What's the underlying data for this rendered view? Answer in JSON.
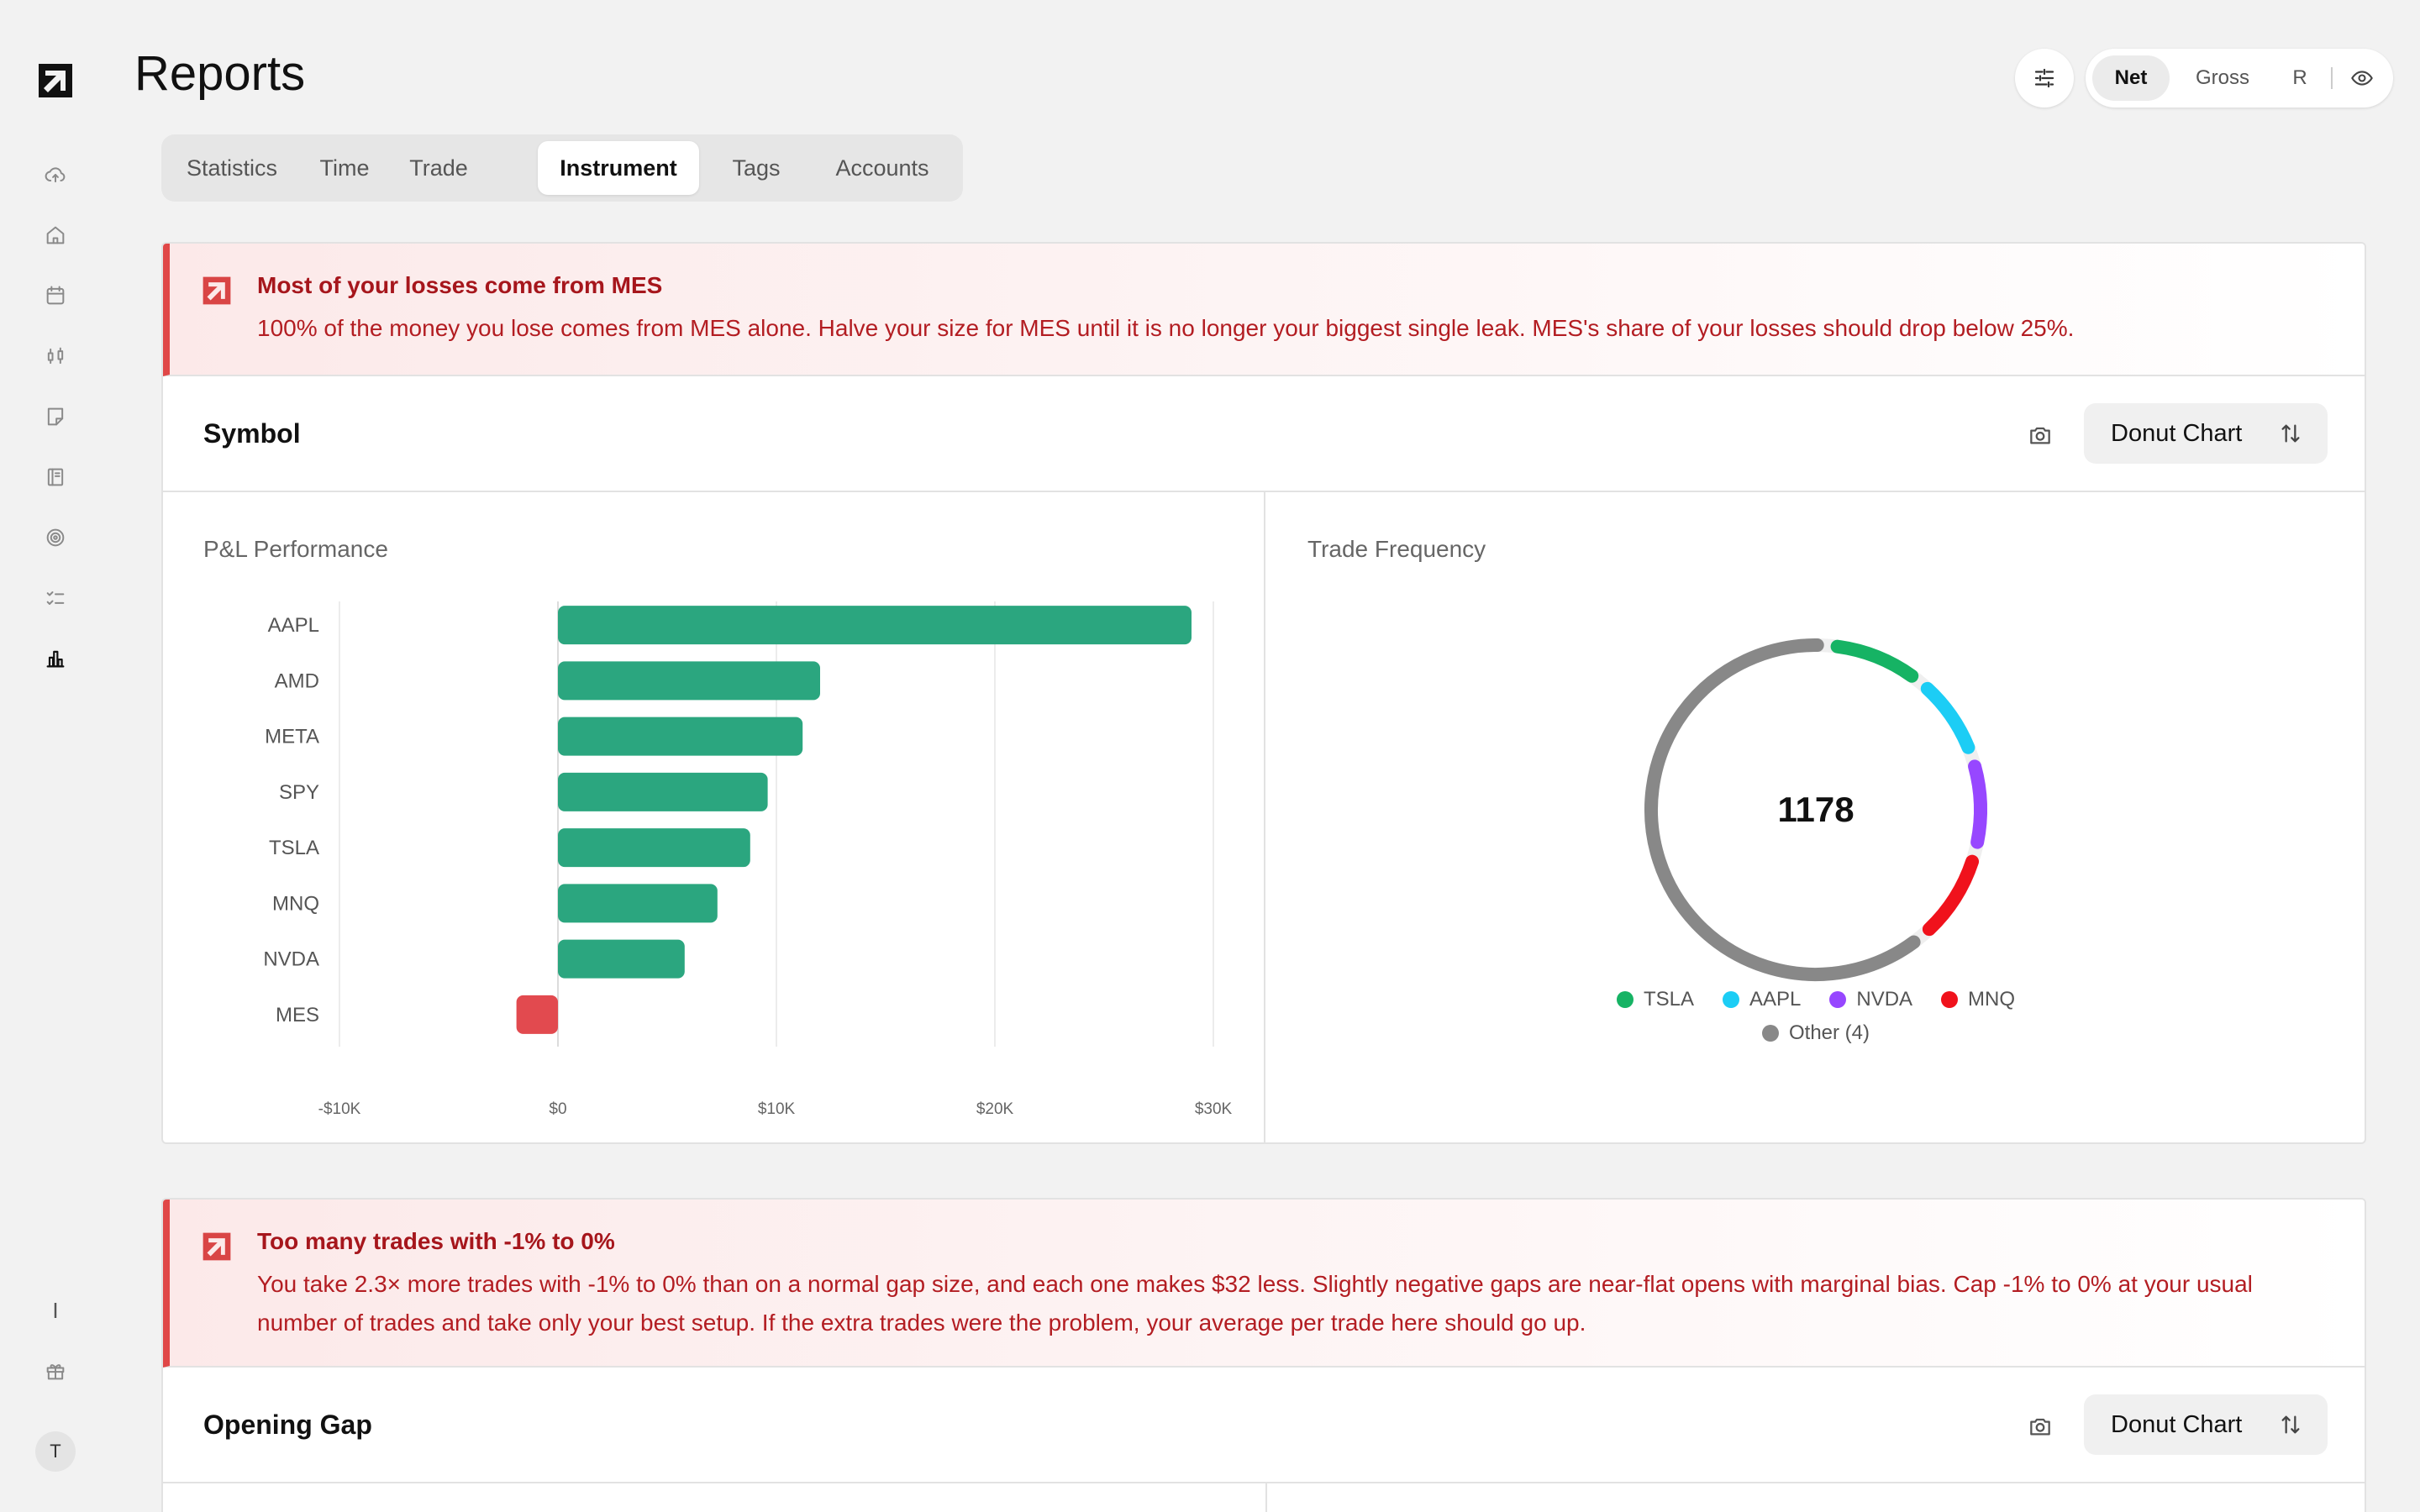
{
  "page": {
    "title": "Reports"
  },
  "sidebar": {
    "items": [
      {
        "icon": "cloud-upload-icon"
      },
      {
        "icon": "home-icon"
      },
      {
        "icon": "calendar-icon"
      },
      {
        "icon": "candlestick-icon"
      },
      {
        "icon": "note-icon"
      },
      {
        "icon": "notebook-icon"
      },
      {
        "icon": "target-icon"
      },
      {
        "icon": "checklist-icon"
      },
      {
        "icon": "bar-chart-icon",
        "active": true
      }
    ],
    "bottom": {
      "divider_glyph": "I",
      "avatar_initial": "T"
    }
  },
  "header": {
    "modes": [
      "Net",
      "Gross",
      "R"
    ],
    "active_mode": "Net"
  },
  "tabs": {
    "items": [
      "Statistics",
      "Time",
      "Trade",
      "Instrument",
      "Tags",
      "Accounts"
    ],
    "active": "Instrument"
  },
  "sections": [
    {
      "insight": {
        "title": "Most of your losses come from MES",
        "body": "100% of the money you lose comes from MES alone. Halve your size for MES until it is no longer your biggest single leak. MES's share of your losses should drop below 25%."
      },
      "title": "Symbol",
      "chart_type_label": "Donut Chart",
      "left_panel_title": "P&L Performance",
      "right_panel_title": "Trade Frequency"
    },
    {
      "insight": {
        "title": "Too many trades with -1% to 0%",
        "body": "You take 2.3× more trades with -1% to 0% than on a normal gap size, and each one makes $32 less. Slightly negative gaps are near-flat opens with marginal bias. Cap -1% to 0% at your usual number of trades and take only your best setup. If the extra trades were the problem, your average per trade here should go up."
      },
      "title": "Opening Gap",
      "chart_type_label": "Donut Chart"
    }
  ],
  "colors": {
    "positive": "#2ba67f",
    "negative": "#e24a4f",
    "insight_text": "#b31d22",
    "insight_border": "#e04747"
  },
  "chart_data": [
    {
      "type": "bar",
      "orientation": "horizontal",
      "title": "P&L Performance",
      "categories": [
        "AAPL",
        "AMD",
        "META",
        "SPY",
        "TSLA",
        "MNQ",
        "NVDA",
        "MES"
      ],
      "values": [
        29000,
        12000,
        11200,
        9600,
        8800,
        7300,
        5800,
        -1900
      ],
      "xlim": [
        -10000,
        30000
      ],
      "xticks": [
        "-$10K",
        "$0",
        "$10K",
        "$20K",
        "$30K"
      ],
      "xtick_values": [
        -10000,
        0,
        10000,
        20000,
        30000
      ],
      "grid": true
    },
    {
      "type": "pie",
      "variant": "donut",
      "title": "Trade Frequency",
      "center_label": "1178",
      "categories": [
        "TSLA",
        "AAPL",
        "NVDA",
        "MNQ",
        "Other (4)"
      ],
      "values": [
        115,
        105,
        110,
        115,
        733
      ],
      "colors": [
        "#16b364",
        "#1ccdf5",
        "#9747ff",
        "#f0121c",
        "#888888"
      ],
      "start_angle_deg": 4,
      "legend_position": "bottom"
    }
  ]
}
